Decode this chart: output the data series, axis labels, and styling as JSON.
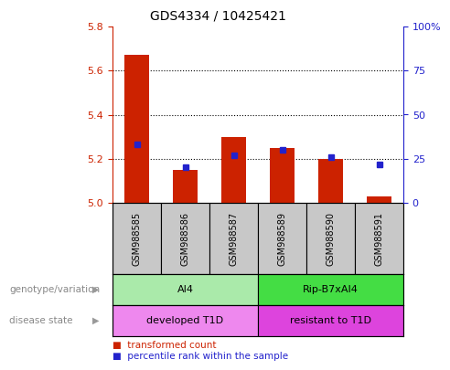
{
  "title": "GDS4334 / 10425421",
  "samples": [
    "GSM988585",
    "GSM988586",
    "GSM988587",
    "GSM988589",
    "GSM988590",
    "GSM988591"
  ],
  "red_values": [
    5.67,
    5.15,
    5.3,
    5.25,
    5.2,
    5.03
  ],
  "blue_values": [
    33,
    20,
    27,
    30,
    26,
    22
  ],
  "ylim_left": [
    5.0,
    5.8
  ],
  "ylim_right": [
    0,
    100
  ],
  "yticks_left": [
    5.0,
    5.2,
    5.4,
    5.6,
    5.8
  ],
  "yticks_right": [
    0,
    25,
    50,
    75,
    100
  ],
  "ytick_labels_right": [
    "0",
    "25",
    "50",
    "75",
    "100%"
  ],
  "hgrid_lines": [
    5.2,
    5.4,
    5.6
  ],
  "red_color": "#cc2200",
  "blue_color": "#2222cc",
  "bar_width": 0.5,
  "genotype_groups": [
    {
      "label": "AI4",
      "start": 0,
      "end": 3,
      "color": "#aaeaaa"
    },
    {
      "label": "Rip-B7xAI4",
      "start": 3,
      "end": 6,
      "color": "#44dd44"
    }
  ],
  "disease_groups": [
    {
      "label": "developed T1D",
      "start": 0,
      "end": 3,
      "color": "#ee88ee"
    },
    {
      "label": "resistant to T1D",
      "start": 3,
      "end": 6,
      "color": "#dd44dd"
    }
  ],
  "row_label_geno": "genotype/variation",
  "row_label_dis": "disease state",
  "legend_red": "transformed count",
  "legend_blue": "percentile rank within the sample",
  "sample_bg_color": "#c8c8c8"
}
